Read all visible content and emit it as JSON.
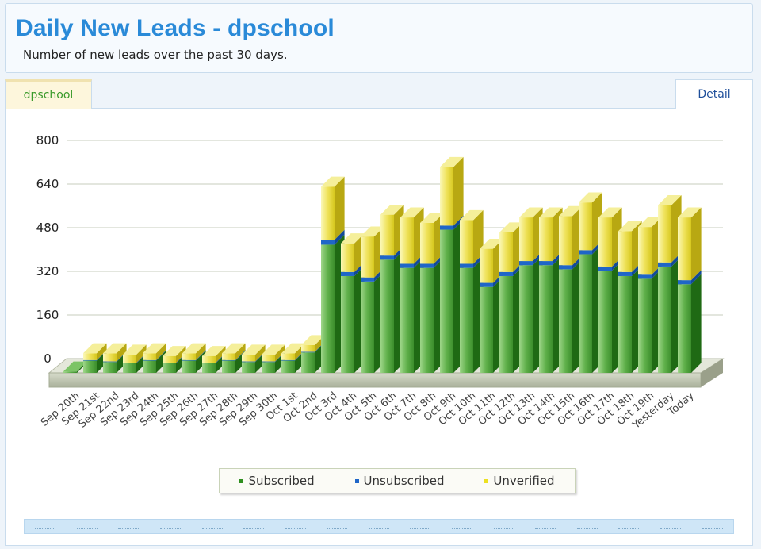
{
  "header": {
    "title": "Daily New Leads - dpschool",
    "subtitle": "Number of new leads over the past 30 days."
  },
  "tabs": {
    "active_label": "dpschool",
    "detail_label": "Detail"
  },
  "colors": {
    "subscribed": "#2f8f1f",
    "unsubscribed": "#1f66c8",
    "unverified": "#ece020"
  },
  "chart_data": {
    "type": "bar",
    "stacked": true,
    "rendering": "3d",
    "yticks": [
      0,
      160,
      320,
      480,
      640,
      800
    ],
    "ylim": [
      0,
      800
    ],
    "grid": true,
    "legend_position": "bottom",
    "categories": [
      "Sep 20th",
      "Sep 21st",
      "Sep 22nd",
      "Sep 23rd",
      "Sep 24th",
      "Sep 25th",
      "Sep 26th",
      "Sep 27th",
      "Sep 28th",
      "Sep 29th",
      "Sep 30th",
      "Oct 1st",
      "Oct 2nd",
      "Oct 3rd",
      "Oct 4th",
      "Oct 5th",
      "Oct 6th",
      "Oct 7th",
      "Oct 8th",
      "Oct 9th",
      "Oct 10th",
      "Oct 11th",
      "Oct 12th",
      "Oct 13th",
      "Oct 14th",
      "Oct 15th",
      "Oct 16th",
      "Oct 17th",
      "Oct 18th",
      "Oct 19th",
      "Yesterday",
      "Today"
    ],
    "series": [
      {
        "name": "Subscribed",
        "values": [
          5,
          45,
          40,
          35,
          45,
          35,
          45,
          35,
          45,
          40,
          40,
          45,
          75,
          470,
          355,
          335,
          415,
          385,
          385,
          525,
          385,
          315,
          355,
          395,
          395,
          380,
          435,
          375,
          355,
          345,
          390,
          325
        ]
      },
      {
        "name": "Unsubscribed",
        "values": [
          0,
          2,
          2,
          2,
          2,
          2,
          2,
          2,
          2,
          2,
          2,
          2,
          2,
          18,
          15,
          15,
          15,
          15,
          15,
          15,
          15,
          15,
          15,
          15,
          15,
          15,
          15,
          15,
          15,
          15,
          15,
          15
        ]
      },
      {
        "name": "Unverified",
        "values": [
          0,
          25,
          30,
          30,
          25,
          25,
          25,
          25,
          25,
          25,
          25,
          25,
          25,
          195,
          105,
          150,
          150,
          170,
          150,
          215,
          160,
          125,
          145,
          160,
          160,
          180,
          175,
          180,
          150,
          175,
          210,
          230
        ]
      }
    ]
  },
  "legend": {
    "items": [
      {
        "label": "Subscribed"
      },
      {
        "label": "Unsubscribed"
      },
      {
        "label": "Unverified"
      }
    ]
  }
}
